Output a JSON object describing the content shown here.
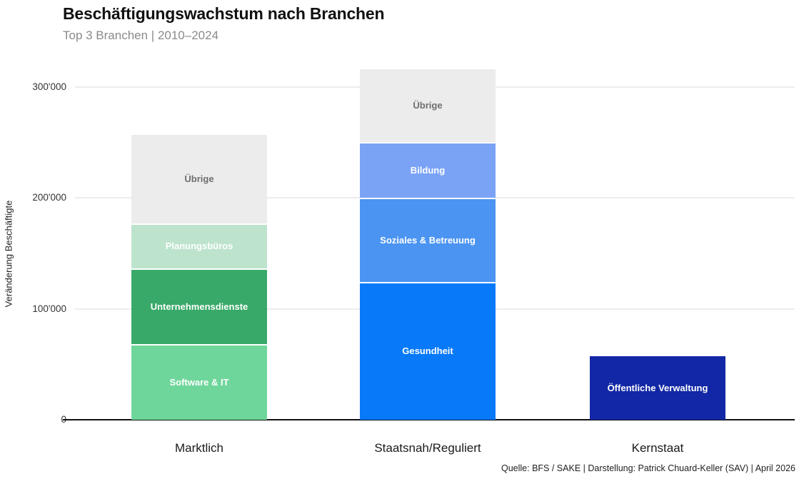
{
  "chart_data": {
    "type": "bar",
    "stacked": true,
    "title": "Beschäftigungswachstum nach Branchen",
    "subtitle": "Top 3 Branchen | 2010–2024",
    "ylabel": "Veränderung Beschäftigte",
    "xlabel": "",
    "ylim": [
      0,
      320000
    ],
    "grid": "horizontal",
    "legend": "none",
    "yticks": [
      0,
      100000,
      200000,
      300000
    ],
    "ytick_labels": [
      "0",
      "100'000",
      "200'000",
      "300'000"
    ],
    "categories": [
      "Marktlich",
      "Staatsnah/Reguliert",
      "Kernstaat"
    ],
    "bars": [
      {
        "category": "Marktlich",
        "total": 257000,
        "segments": [
          {
            "label": "Software & IT",
            "value": 67000,
            "color": "#6fd69b",
            "label_color": "#ffffff"
          },
          {
            "label": "Unternehmensdienste",
            "value": 68000,
            "color": "#38a968",
            "label_color": "#ffffff"
          },
          {
            "label": "Planungsbüros",
            "value": 41000,
            "color": "#bde3cd",
            "label_color": "#ffffff"
          },
          {
            "label": "Übrige",
            "value": 81000,
            "color": "#ececec",
            "label_color": "#6e6e6e"
          }
        ]
      },
      {
        "category": "Staatsnah/Reguliert",
        "total": 316000,
        "segments": [
          {
            "label": "Gesundheit",
            "value": 123000,
            "color": "#0779f9",
            "label_color": "#ffffff"
          },
          {
            "label": "Soziales & Betreuung",
            "value": 76000,
            "color": "#4b94f2",
            "label_color": "#ffffff"
          },
          {
            "label": "Bildung",
            "value": 50000,
            "color": "#7aa3f6",
            "label_color": "#ffffff"
          },
          {
            "label": "Übrige",
            "value": 67000,
            "color": "#ececec",
            "label_color": "#6e6e6e"
          }
        ]
      },
      {
        "category": "Kernstaat",
        "total": 57000,
        "segments": [
          {
            "label": "Öffentliche Verwaltung",
            "value": 57000,
            "color": "#1227a5",
            "label_color": "#ffffff"
          }
        ]
      }
    ],
    "source": "Quelle: BFS / SAKE | Darstellung: Patrick Chuard-Keller (SAV) | April 2026"
  }
}
